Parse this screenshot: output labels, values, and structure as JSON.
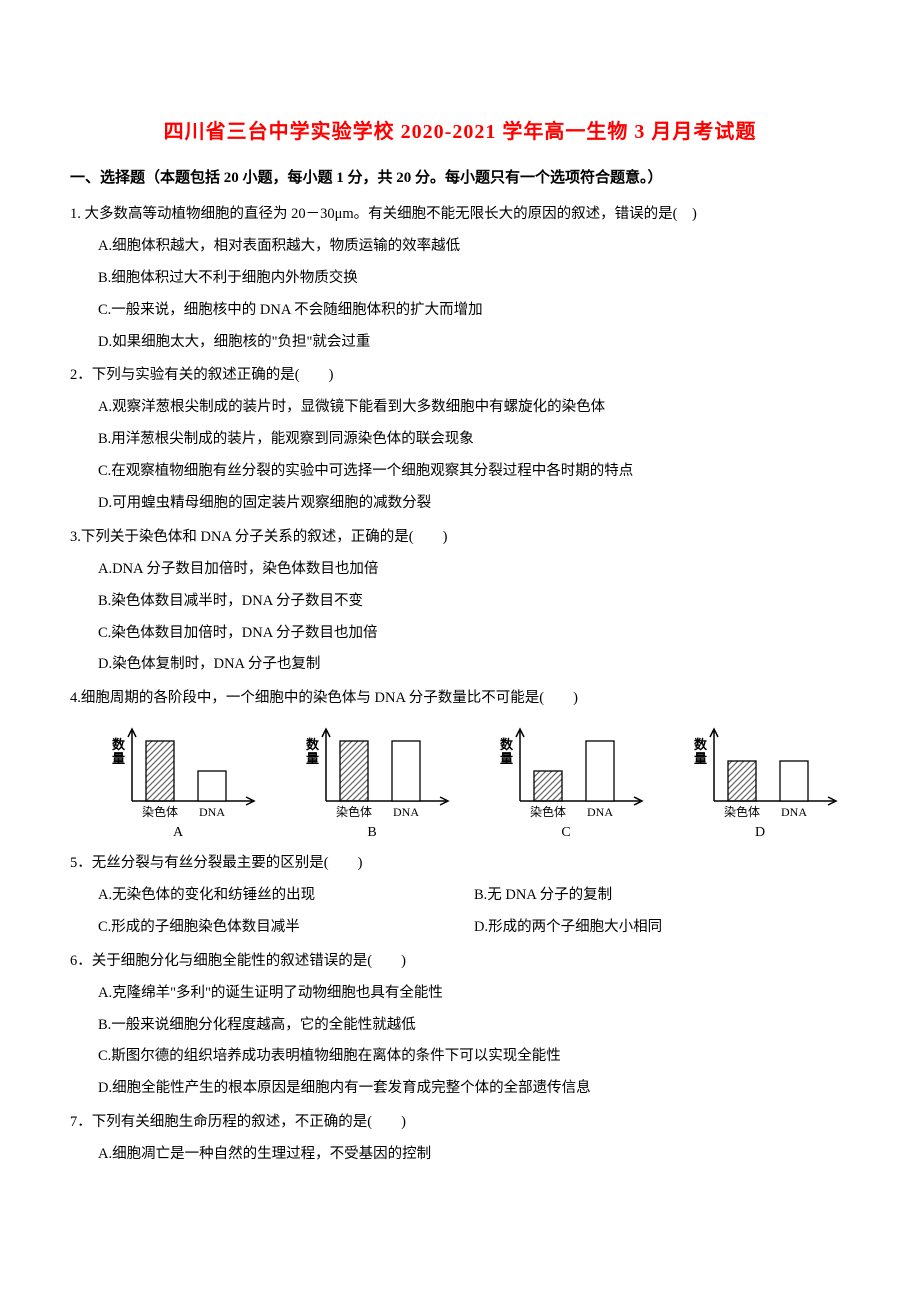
{
  "title": "四川省三台中学实验学校 2020-2021 学年高一生物 3 月月考试题",
  "section_header": "一、选择题（本题包括 20 小题，每小题 1 分，共 20 分。每小题只有一个选项符合题意。）",
  "q1": {
    "text": "1. 大多数高等动植物细胞的直径为 20－30μm。有关细胞不能无限长大的原因的叙述，错误的是(　)",
    "a": "A.细胞体积越大，相对表面积越大，物质运输的效率越低",
    "b": "B.细胞体积过大不利于细胞内外物质交换",
    "c": "C.一般来说，细胞核中的 DNA 不会随细胞体积的扩大而增加",
    "d": "D.如果细胞太大，细胞核的\"负担\"就会过重"
  },
  "q2": {
    "text": "2．下列与实验有关的叙述正确的是(　　)",
    "a": "A.观察洋葱根尖制成的装片时，显微镜下能看到大多数细胞中有螺旋化的染色体",
    "b": "B.用洋葱根尖制成的装片，能观察到同源染色体的联会现象",
    "c": "C.在观察植物细胞有丝分裂的实验中可选择一个细胞观察其分裂过程中各时期的特点",
    "d": "D.可用蝗虫精母细胞的固定装片观察细胞的减数分裂"
  },
  "q3": {
    "text": "3.下列关于染色体和 DNA 分子关系的叙述，正确的是(　　)",
    "a": "A.DNA 分子数目加倍时，染色体数目也加倍",
    "b": "B.染色体数目减半时，DNA 分子数目不变",
    "c": "C.染色体数目加倍时，DNA 分子数目也加倍",
    "d": "D.染色体复制时，DNA 分子也复制"
  },
  "q4": {
    "text": "4.细胞周期的各阶段中，一个细胞中的染色体与 DNA 分子数量比不可能是(　　)",
    "ylabel": "数量",
    "xlabel1": "染色体",
    "xlabel2": "DNA",
    "charts": [
      {
        "label": "A",
        "bar1": 60,
        "bar2": 30
      },
      {
        "label": "B",
        "bar1": 60,
        "bar2": 60
      },
      {
        "label": "C",
        "bar1": 30,
        "bar2": 60
      },
      {
        "label": "D",
        "bar1": 40,
        "bar2": 40
      }
    ],
    "hatch_color": "#666666",
    "axis_color": "#000000"
  },
  "q5": {
    "text": "5．无丝分裂与有丝分裂最主要的区别是(　　)",
    "a": "A.无染色体的变化和纺锤丝的出现",
    "b": "B.无 DNA 分子的复制",
    "c": "C.形成的子细胞染色体数目减半",
    "d": "D.形成的两个子细胞大小相同"
  },
  "q6": {
    "text": "6．关于细胞分化与细胞全能性的叙述错误的是(　　)",
    "a": "A.克隆绵羊\"多利\"的诞生证明了动物细胞也具有全能性",
    "b": "B.一般来说细胞分化程度越高，它的全能性就越低",
    "c": "C.斯图尔德的组织培养成功表明植物细胞在离体的条件下可以实现全能性",
    "d": "D.细胞全能性产生的根本原因是细胞内有一套发育成完整个体的全部遗传信息"
  },
  "q7": {
    "text": "7．下列有关细胞生命历程的叙述，不正确的是(　　)",
    "a": "A.细胞凋亡是一种自然的生理过程，不受基因的控制"
  }
}
